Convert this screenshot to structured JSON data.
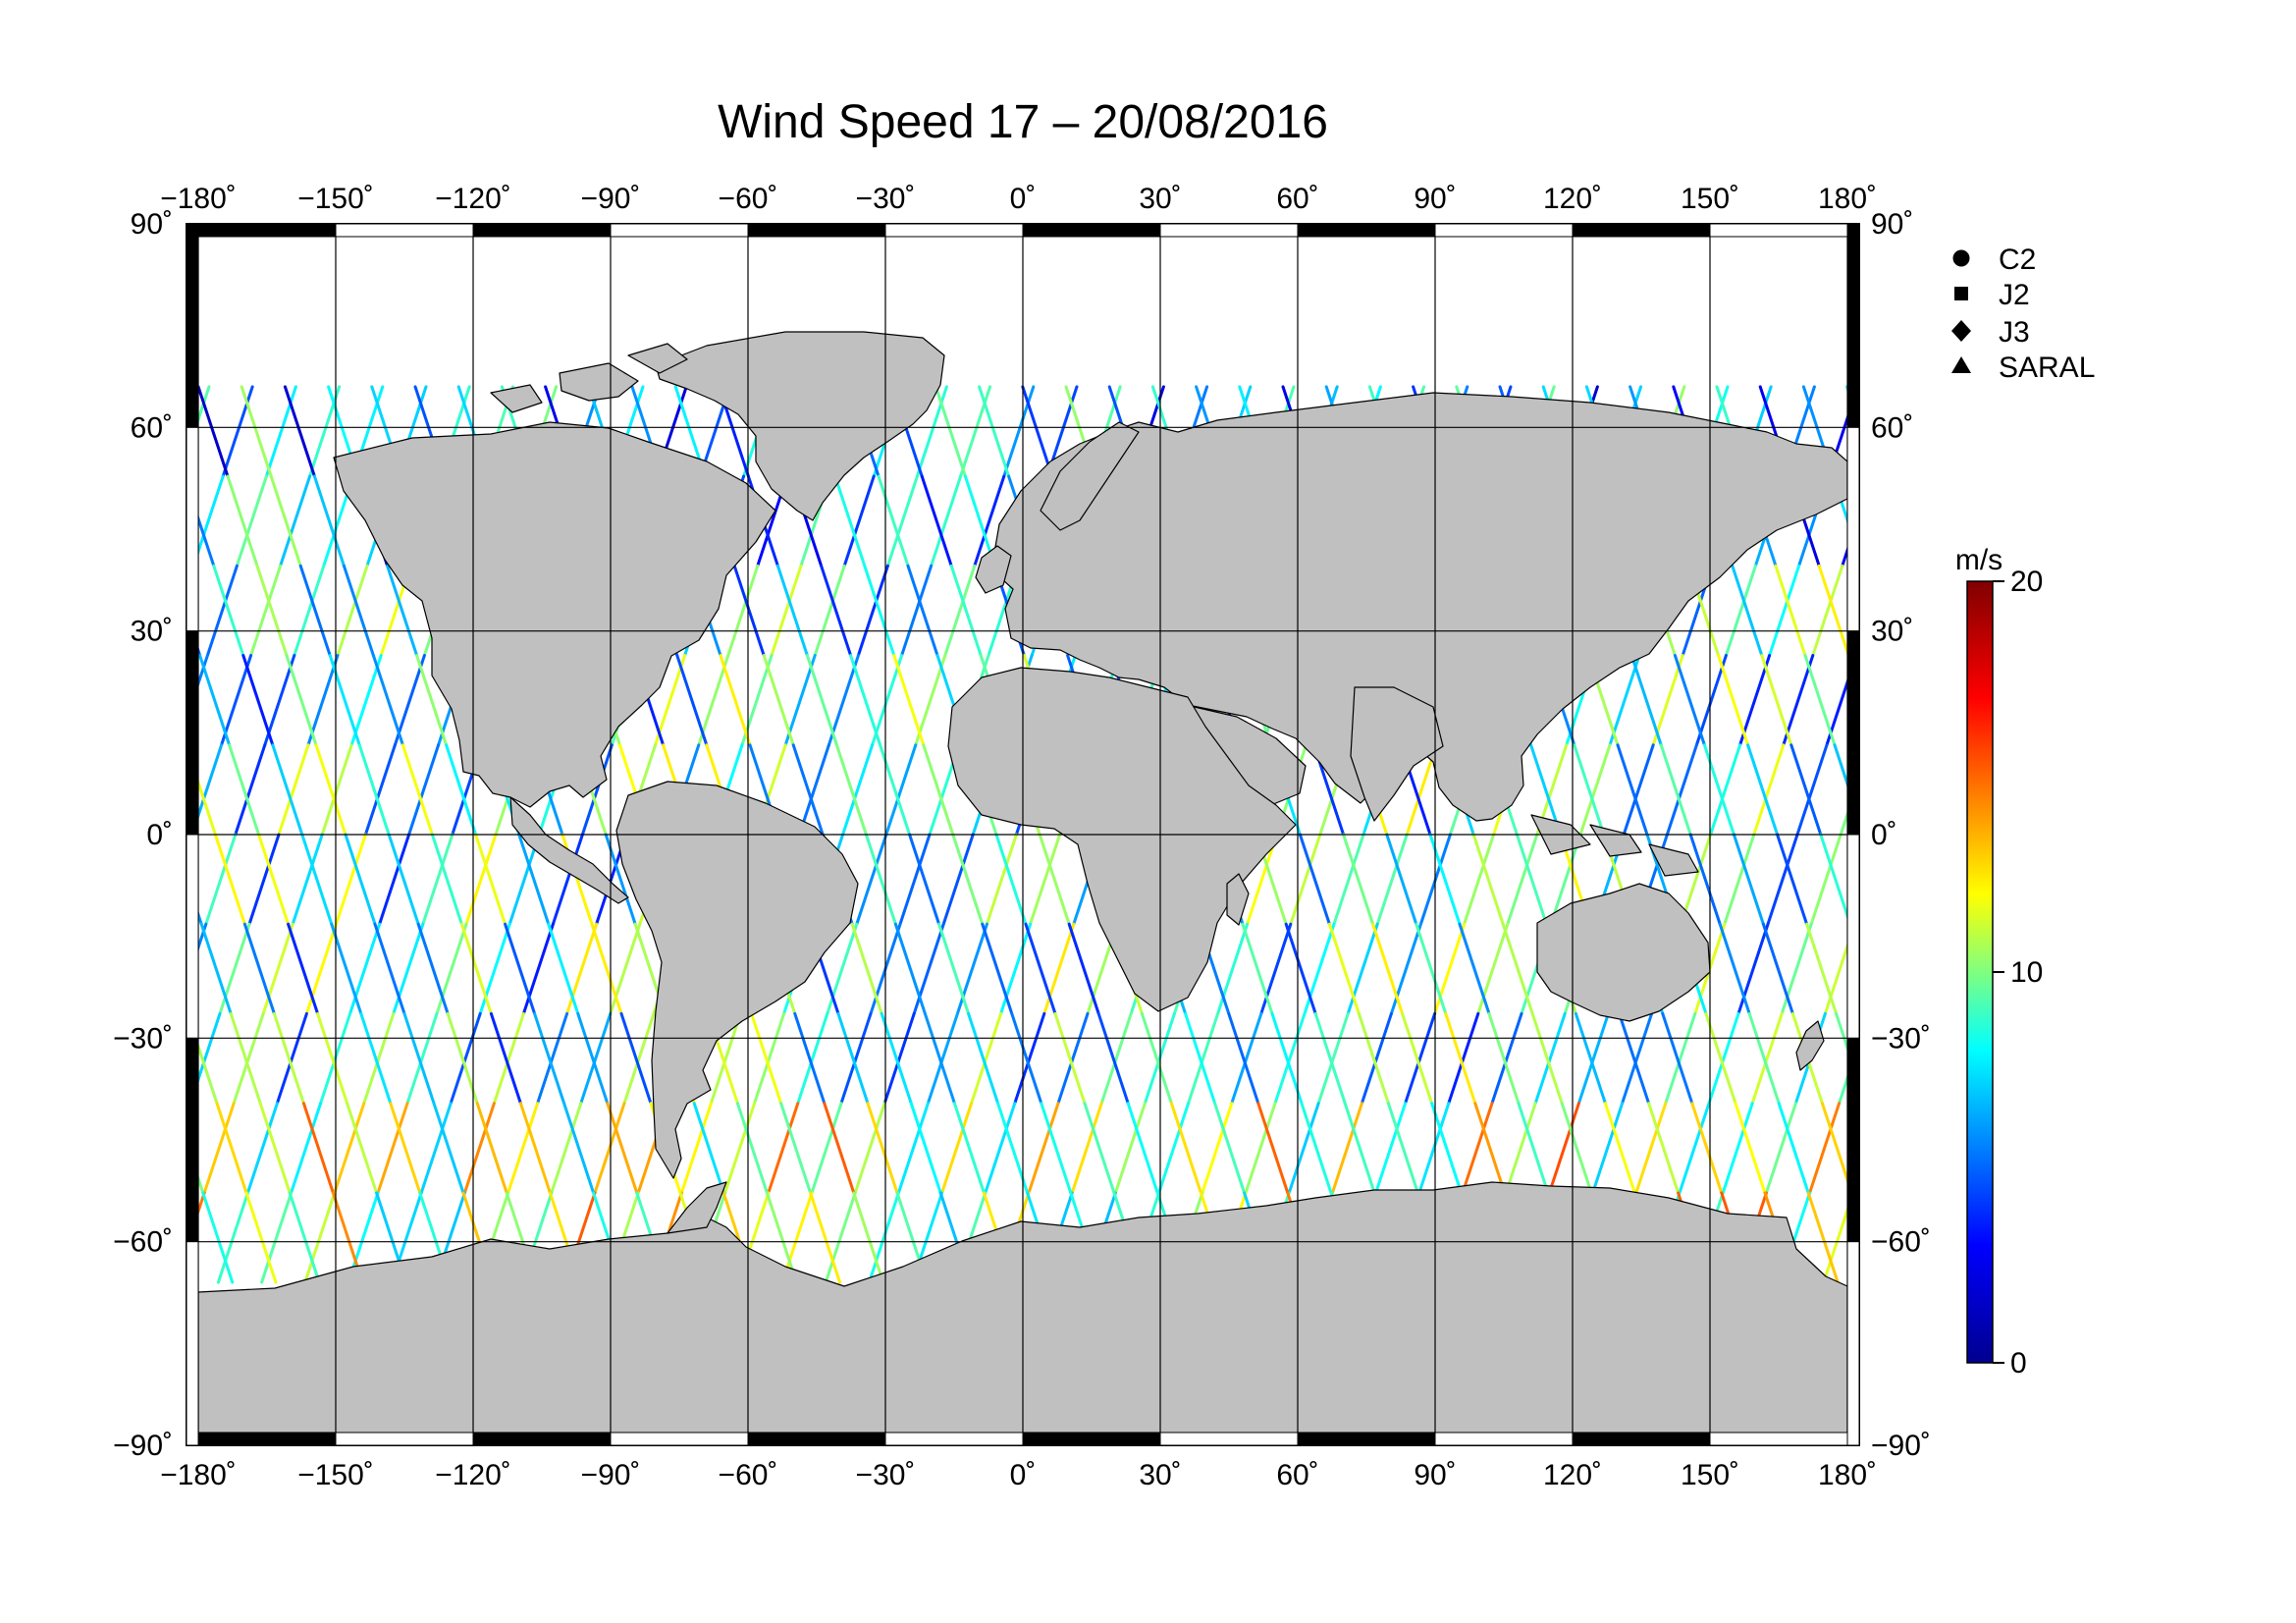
{
  "title": "Wind Speed 17 – 20/08/2016",
  "axes": {
    "lon_ticks": [
      -180,
      -150,
      -120,
      -90,
      -60,
      -30,
      0,
      30,
      60,
      90,
      120,
      150,
      180
    ],
    "lon_tick_labels": [
      "−180˚",
      "−150˚",
      "−120˚",
      "−90˚",
      "−60˚",
      "−30˚",
      "0˚",
      "30˚",
      "60˚",
      "90˚",
      "120˚",
      "150˚",
      "180˚"
    ],
    "lat_ticks": [
      90,
      60,
      30,
      0,
      -30,
      -60,
      -90
    ],
    "lat_tick_labels": [
      "90˚",
      "60˚",
      "30˚",
      "0˚",
      "−30˚",
      "−60˚",
      "−90˚"
    ],
    "lon_range": [
      -180,
      180
    ],
    "lat_range": [
      -90,
      90
    ],
    "grid": true
  },
  "legend": {
    "placement": "right",
    "items": [
      {
        "label": "C2",
        "symbol": "circle"
      },
      {
        "label": "J2",
        "symbol": "square"
      },
      {
        "label": "J3",
        "symbol": "diamond"
      },
      {
        "label": "SARAL",
        "symbol": "triangle"
      }
    ]
  },
  "colorbar": {
    "unit": "m/s",
    "min": 0,
    "max": 20,
    "tick_values": [
      0,
      10,
      20
    ],
    "tick_labels": [
      "0",
      "10",
      "20"
    ],
    "colormap": [
      "#00008f",
      "#0000ff",
      "#00ffff",
      "#ffff00",
      "#ff0000",
      "#800000"
    ]
  },
  "colors": {
    "land": "#c0c0c0",
    "ocean": "#ffffff",
    "coastline": "#000000",
    "grid": "#000000"
  }
}
